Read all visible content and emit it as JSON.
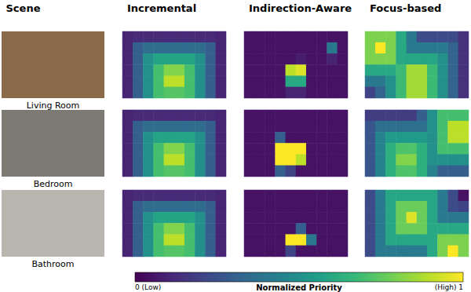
{
  "chart_data": {
    "type": "heatmap",
    "scene_header": "Scene",
    "methods": [
      "Incremental",
      "Indirection-Aware",
      "Focus-based"
    ],
    "tick_labels": false,
    "scenes": [
      {
        "name": "Living Room",
        "cells": [
          [
            [
              0.1,
              0.12,
              0.12,
              0.12,
              0.12,
              0.12,
              0.12,
              0.12,
              0.12,
              0.1
            ],
            [
              0.1,
              0.3,
              0.35,
              0.35,
              0.35,
              0.35,
              0.35,
              0.35,
              0.3,
              0.1
            ],
            [
              0.1,
              0.3,
              0.5,
              0.58,
              0.58,
              0.58,
              0.58,
              0.5,
              0.3,
              0.1
            ],
            [
              0.1,
              0.3,
              0.5,
              0.7,
              0.81,
              0.81,
              0.7,
              0.5,
              0.3,
              0.1
            ],
            [
              0.1,
              0.3,
              0.5,
              0.7,
              0.9,
              0.9,
              0.7,
              0.5,
              0.3,
              0.1
            ],
            [
              0.1,
              0.3,
              0.5,
              0.7,
              0.73,
              0.73,
              0.7,
              0.5,
              0.3,
              0.1
            ]
          ],
          [
            [
              0.05,
              0.05,
              0.05,
              0.05,
              0.05,
              0.05,
              0.05,
              0.05,
              0.05,
              0.05
            ],
            [
              0.05,
              0.05,
              0.05,
              0.05,
              0.05,
              0.05,
              0.05,
              0.05,
              0.4,
              0.05
            ],
            [
              0.05,
              0.05,
              0.05,
              0.05,
              0.05,
              0.08,
              0.05,
              0.05,
              0.1,
              0.05
            ],
            [
              0.05,
              0.05,
              0.05,
              0.05,
              0.9,
              0.95,
              0.05,
              0.05,
              0.05,
              0.05
            ],
            [
              0.05,
              0.05,
              0.05,
              0.05,
              0.6,
              0.6,
              0.05,
              0.05,
              0.05,
              0.05
            ],
            [
              0.05,
              0.05,
              0.05,
              0.05,
              0.1,
              0.1,
              0.05,
              0.05,
              0.05,
              0.05
            ]
          ],
          [
            [
              0.8,
              0.8,
              0.8,
              0.6,
              0.4,
              0.23,
              0.23,
              0.23,
              0.23,
              0.14
            ],
            [
              0.8,
              1,
              0.8,
              0.6,
              0.41,
              0.41,
              0.41,
              0.41,
              0.32,
              0.14
            ],
            [
              0.8,
              0.8,
              0.8,
              0.6,
              0.59,
              0.59,
              0.59,
              0.5,
              0.32,
              0.14
            ],
            [
              0.6,
              0.6,
              0.6,
              0.68,
              0.86,
              0.86,
              0.68,
              0.5,
              0.32,
              0.14
            ],
            [
              0.4,
              0.4,
              0.5,
              0.68,
              0.86,
              0.86,
              0.68,
              0.5,
              0.32,
              0.14
            ],
            [
              0.2,
              0.32,
              0.5,
              0.68,
              0.86,
              0.86,
              0.68,
              0.5,
              0.32,
              0.14
            ]
          ]
        ]
      },
      {
        "name": "Bedroom",
        "cells": [
          [
            [
              0.1,
              0.12,
              0.12,
              0.12,
              0.12,
              0.12,
              0.12,
              0.12,
              0.12,
              0.1
            ],
            [
              0.1,
              0.3,
              0.35,
              0.35,
              0.35,
              0.35,
              0.35,
              0.35,
              0.3,
              0.1
            ],
            [
              0.1,
              0.3,
              0.5,
              0.58,
              0.58,
              0.58,
              0.58,
              0.5,
              0.3,
              0.1
            ],
            [
              0.1,
              0.3,
              0.5,
              0.7,
              0.81,
              0.81,
              0.7,
              0.5,
              0.3,
              0.1
            ],
            [
              0.1,
              0.3,
              0.5,
              0.7,
              0.9,
              0.9,
              0.7,
              0.5,
              0.3,
              0.1
            ],
            [
              0.1,
              0.3,
              0.5,
              0.7,
              0.73,
              0.73,
              0.7,
              0.5,
              0.3,
              0.1
            ]
          ],
          [
            [
              0.05,
              0.05,
              0.05,
              0.05,
              0.05,
              0.05,
              0.05,
              0.05,
              0.05,
              0.05
            ],
            [
              0.05,
              0.05,
              0.05,
              0.05,
              0.05,
              0.05,
              0.05,
              0.05,
              0.05,
              0.05
            ],
            [
              0.05,
              0.05,
              0.05,
              0.3,
              0.05,
              0.05,
              0.05,
              0.05,
              0.05,
              0.05
            ],
            [
              0.05,
              0.05,
              0.05,
              1,
              1,
              1,
              0.05,
              0.05,
              0.05,
              0.05
            ],
            [
              0.05,
              0.05,
              0.05,
              1,
              1,
              0.9,
              0.05,
              0.05,
              0.05,
              0.05
            ],
            [
              0.05,
              0.05,
              0.05,
              0.3,
              0.2,
              0.05,
              0.05,
              0.05,
              0.05,
              0.05
            ]
          ],
          [
            [
              0.18,
              0.18,
              0.18,
              0.18,
              0.18,
              0.3,
              0.5,
              0.7,
              0.7,
              0.7
            ],
            [
              0.27,
              0.36,
              0.36,
              0.36,
              0.36,
              0.36,
              0.5,
              0.7,
              0.9,
              0.9
            ],
            [
              0.27,
              0.45,
              0.54,
              0.54,
              0.54,
              0.54,
              0.5,
              0.7,
              0.9,
              0.9
            ],
            [
              0.27,
              0.45,
              0.63,
              0.72,
              0.72,
              0.63,
              0.5,
              0.7,
              0.7,
              0.7
            ],
            [
              0.27,
              0.45,
              0.63,
              0.81,
              0.81,
              0.63,
              0.5,
              0.5,
              0.5,
              0.5
            ],
            [
              0.27,
              0.45,
              0.63,
              0.72,
              0.72,
              0.63,
              0.45,
              0.3,
              0.3,
              0.3
            ]
          ]
        ]
      },
      {
        "name": "Bathroom",
        "cells": [
          [
            [
              0.1,
              0.12,
              0.12,
              0.12,
              0.12,
              0.12,
              0.12,
              0.12,
              0.12,
              0.1
            ],
            [
              0.1,
              0.3,
              0.35,
              0.35,
              0.35,
              0.35,
              0.35,
              0.35,
              0.3,
              0.1
            ],
            [
              0.1,
              0.3,
              0.5,
              0.58,
              0.58,
              0.58,
              0.58,
              0.5,
              0.3,
              0.1
            ],
            [
              0.1,
              0.3,
              0.5,
              0.7,
              0.81,
              0.81,
              0.7,
              0.5,
              0.3,
              0.1
            ],
            [
              0.1,
              0.3,
              0.5,
              0.7,
              0.9,
              0.9,
              0.7,
              0.5,
              0.3,
              0.1
            ],
            [
              0.1,
              0.3,
              0.5,
              0.7,
              0.73,
              0.73,
              0.7,
              0.5,
              0.3,
              0.1
            ]
          ],
          [
            [
              0.05,
              0.05,
              0.05,
              0.05,
              0.05,
              0.05,
              0.05,
              0.05,
              0.05,
              0.05
            ],
            [
              0.05,
              0.05,
              0.05,
              0.05,
              0.05,
              0.05,
              0.05,
              0.05,
              0.05,
              0.05
            ],
            [
              0.05,
              0.05,
              0.05,
              0.05,
              0.05,
              0.05,
              0.05,
              0.05,
              0.05,
              0.05
            ],
            [
              0.05,
              0.05,
              0.05,
              0.05,
              0.05,
              0.3,
              0.05,
              0.05,
              0.05,
              0.05
            ],
            [
              0.05,
              0.05,
              0.05,
              0.05,
              1,
              1,
              0.4,
              0.05,
              0.05,
              0.05
            ],
            [
              0.05,
              0.05,
              0.05,
              0.05,
              0.2,
              0.05,
              0.05,
              0.05,
              0.05,
              0.05
            ]
          ],
          [
            [
              0.23,
              0.41,
              0.59,
              0.59,
              0.59,
              0.59,
              0.59,
              0.41,
              0.23,
              0.05
            ],
            [
              0.23,
              0.41,
              0.59,
              0.77,
              0.77,
              0.77,
              0.59,
              0.41,
              0.23,
              0.2
            ],
            [
              0.23,
              0.41,
              0.59,
              0.77,
              0.95,
              0.77,
              0.59,
              0.41,
              0.4,
              0.4
            ],
            [
              0.23,
              0.41,
              0.59,
              0.77,
              0.77,
              0.77,
              0.6,
              0.6,
              0.6,
              0.6
            ],
            [
              0.23,
              0.41,
              0.59,
              0.59,
              0.59,
              0.59,
              0.6,
              0.8,
              0.8,
              0.8
            ],
            [
              0.23,
              0.41,
              0.41,
              0.41,
              0.41,
              0.41,
              0.6,
              0.8,
              1,
              0.8
            ]
          ]
        ]
      }
    ],
    "colorbar": {
      "label": "Normalized Priority",
      "range": [
        0,
        1
      ],
      "ticks": [
        {
          "value": 0,
          "label": "0 (Low)"
        },
        {
          "value": 1,
          "label": "(High) 1"
        }
      ]
    }
  }
}
